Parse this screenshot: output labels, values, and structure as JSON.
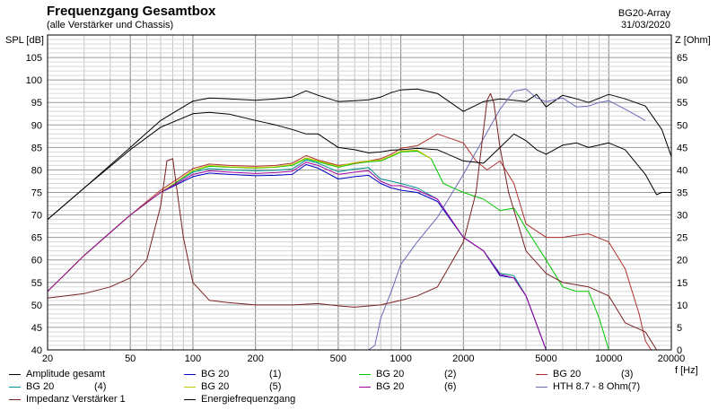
{
  "header": {
    "title": "Frequenzgang Gesamtbox",
    "subtitle": "(alle Verstärker und Chassis)",
    "project": "BG20-Array",
    "date": "31/03/2020"
  },
  "chart_data": {
    "type": "line",
    "x_scale": "log",
    "xlim": [
      20,
      20000
    ],
    "x_ticks": [
      "20",
      "50",
      "100",
      "200",
      "500",
      "1000",
      "2000",
      "5000",
      "10000",
      "20000"
    ],
    "xlabel": "f [Hz]",
    "y_left": {
      "label": "SPL [dB]",
      "lim": [
        40,
        110
      ],
      "ticks": [
        "105",
        "100",
        "95",
        "90",
        "85",
        "80",
        "75",
        "70",
        "65",
        "60",
        "55",
        "50",
        "45",
        "40"
      ]
    },
    "y_right": {
      "label": "Z [Ohm]",
      "lim": [
        0,
        70
      ],
      "ticks": [
        "65",
        "60",
        "55",
        "50",
        "45",
        "40",
        "35",
        "30",
        "25",
        "20",
        "15",
        "10",
        "5",
        "0"
      ]
    },
    "grid": true,
    "series": [
      {
        "name": "Amplitude gesamt",
        "suffix": "",
        "color": "#000000",
        "axis": "left",
        "x": [
          20,
          30,
          50,
          70,
          100,
          120,
          150,
          200,
          250,
          300,
          350,
          400,
          500,
          600,
          700,
          800,
          900,
          1000,
          1200,
          1500,
          2000,
          2500,
          3000,
          3500,
          4000,
          4500,
          5000,
          6000,
          7000,
          8000,
          10000,
          12000,
          15000,
          18000,
          20000
        ],
        "y": [
          69,
          76,
          85,
          91,
          95.3,
          96,
          95.8,
          95.5,
          95.8,
          96.2,
          97.6,
          96.6,
          95.2,
          95.4,
          95.6,
          96.2,
          97.2,
          97.8,
          98,
          97,
          93,
          95.2,
          95.8,
          95.5,
          95.2,
          96.8,
          94,
          96.6,
          95.8,
          95,
          96.8,
          95.8,
          94.2,
          89,
          83
        ]
      },
      {
        "name": "BG 20",
        "suffix": "(1)",
        "color": "#0000c8",
        "axis": "left",
        "x": [
          20,
          30,
          50,
          70,
          100,
          120,
          150,
          200,
          250,
          300,
          350,
          400,
          500,
          600,
          700,
          800,
          900,
          1000,
          1200,
          1500,
          2000,
          2500,
          3000,
          3500,
          4000,
          5000,
          6000
        ],
        "y": [
          53,
          61,
          70,
          75,
          78.5,
          79.3,
          79,
          78.7,
          78.8,
          79,
          81.2,
          80.4,
          78,
          78.5,
          78.8,
          77,
          76,
          75.5,
          75,
          73,
          65,
          62,
          56.5,
          56,
          52,
          40,
          40
        ]
      },
      {
        "name": "BG 20",
        "suffix": "(2)",
        "color": "#00c800",
        "axis": "left",
        "x": [
          20,
          30,
          50,
          70,
          100,
          120,
          150,
          200,
          250,
          300,
          350,
          400,
          500,
          600,
          700,
          800,
          900,
          1000,
          1200,
          1400,
          1600,
          2000,
          2500,
          3000,
          3500,
          4000,
          5000,
          6000,
          7000,
          8000,
          9000,
          10000
        ],
        "y": [
          53,
          61,
          70,
          75,
          79.8,
          80.8,
          80.6,
          80.4,
          80.6,
          81,
          82.5,
          81.8,
          80.6,
          81.4,
          81.8,
          82,
          83,
          84,
          84.2,
          82.5,
          77,
          75,
          73.5,
          71,
          71.5,
          67,
          60,
          54,
          53,
          53,
          47,
          40
        ]
      },
      {
        "name": "BG 20",
        "suffix": "(3)",
        "color": "#b03030",
        "axis": "left",
        "x": [
          20,
          30,
          50,
          70,
          100,
          120,
          150,
          200,
          250,
          300,
          350,
          400,
          500,
          600,
          700,
          800,
          900,
          1000,
          1200,
          1500,
          2000,
          2300,
          2600,
          3000,
          3500,
          4000,
          5000,
          6000,
          7000,
          8000,
          10000,
          12000,
          14000,
          15000,
          16000
        ],
        "y": [
          53,
          61,
          70,
          75.5,
          80.3,
          81.3,
          81,
          80.8,
          81,
          81.5,
          83.2,
          82.2,
          81,
          81.5,
          82,
          82.5,
          83.5,
          84.8,
          85.4,
          88,
          86,
          82,
          80,
          82,
          77,
          68,
          65,
          65,
          65.5,
          65.8,
          64,
          58,
          48,
          42,
          40
        ]
      },
      {
        "name": "BG 20",
        "suffix": "(4)",
        "color": "#009090",
        "axis": "left",
        "x": [
          20,
          30,
          50,
          70,
          100,
          120,
          150,
          200,
          250,
          300,
          350,
          400,
          500,
          600,
          700,
          800,
          900,
          1000,
          1200,
          1500,
          2000,
          2500,
          3000,
          3500,
          4000,
          5000,
          6000
        ],
        "y": [
          53,
          61,
          70,
          75,
          79.5,
          80.3,
          80,
          79.8,
          79.9,
          80.2,
          82.2,
          81.5,
          79.6,
          80.2,
          80.5,
          78,
          77.5,
          77,
          76,
          73.5,
          65,
          62,
          57,
          56.5,
          52,
          40,
          40
        ]
      },
      {
        "name": "BG 20",
        "suffix": "(5)",
        "color": "#c8c800",
        "axis": "left",
        "x": [
          20,
          30,
          50,
          70,
          100,
          120,
          150,
          200,
          250,
          300,
          350,
          400,
          500,
          600,
          700,
          800,
          900,
          1000,
          1200,
          1400
        ],
        "y": [
          53,
          61,
          70,
          75,
          79.9,
          81,
          80.7,
          80.5,
          80.7,
          81.2,
          82.7,
          82,
          80.8,
          81.6,
          82,
          82.2,
          83.2,
          84.2,
          84.4,
          82.5
        ]
      },
      {
        "name": "BG 20",
        "suffix": "(6)",
        "color": "#a000a0",
        "axis": "left",
        "x": [
          20,
          30,
          50,
          70,
          100,
          120,
          150,
          200,
          250,
          300,
          350,
          400,
          500,
          600,
          700,
          800,
          900,
          1000,
          1200,
          1500,
          2000,
          2500,
          3000,
          3500,
          4000,
          5000,
          6000
        ],
        "y": [
          53,
          61,
          70,
          75,
          79,
          79.8,
          79.5,
          79.2,
          79.4,
          79.7,
          81.7,
          81,
          79,
          79.5,
          79.8,
          77.5,
          76.5,
          76.5,
          75.5,
          73.5,
          65,
          62,
          56.8,
          56,
          52,
          40,
          40
        ]
      },
      {
        "name": "HTH 8.7 - 8 Ohm",
        "suffix": "(7)",
        "color": "#6a6ab8",
        "axis": "right",
        "x": [
          700,
          750,
          800,
          900,
          1000,
          1200,
          1500,
          2000,
          2500,
          3000,
          3500,
          4000,
          4500,
          5000,
          6000,
          7000,
          8000,
          9000,
          10000,
          12000,
          15000
        ],
        "y": [
          0,
          1,
          7,
          13,
          19,
          24,
          29.5,
          39,
          47,
          53.5,
          57.5,
          58,
          56,
          55.2,
          56,
          54,
          54.2,
          55,
          55.4,
          53.5,
          51
        ]
      },
      {
        "name": "Impedanz Verstärker 1",
        "suffix": "",
        "color": "#7a2020",
        "axis": "right",
        "x": [
          20,
          30,
          40,
          50,
          60,
          70,
          75,
          80,
          90,
          100,
          120,
          150,
          200,
          300,
          400,
          500,
          600,
          800,
          1000,
          1200,
          1500,
          2000,
          2300,
          2600,
          2700,
          2800,
          3000,
          3300,
          4000,
          5000,
          6000,
          8000,
          10000,
          12000,
          15000,
          17000,
          18000,
          20000
        ],
        "y": [
          11.5,
          12.5,
          14,
          16,
          20,
          32,
          42,
          42.5,
          25,
          15,
          11,
          10.5,
          10,
          10,
          10.3,
          9.8,
          9.5,
          10,
          11,
          12,
          14,
          24,
          35,
          55.5,
          57,
          55,
          45,
          35,
          22,
          17,
          15,
          14,
          12,
          6,
          4,
          0,
          0,
          0
        ]
      },
      {
        "name": "Energiefrequenzgang",
        "suffix": "",
        "color": "#000000",
        "axis": "left",
        "x": [
          20,
          30,
          50,
          70,
          100,
          120,
          150,
          200,
          250,
          300,
          350,
          400,
          500,
          600,
          700,
          800,
          900,
          1000,
          1200,
          1500,
          2000,
          2500,
          3000,
          3500,
          4000,
          4500,
          5000,
          6000,
          7000,
          8000,
          10000,
          12000,
          15000,
          17000,
          18000,
          20000
        ],
        "y": [
          69,
          76,
          84.5,
          89.5,
          92.5,
          92.8,
          92.4,
          91,
          90,
          89,
          88,
          88,
          85,
          84.5,
          83.8,
          84,
          84.4,
          84.5,
          84.8,
          84.5,
          82,
          81.5,
          85,
          88,
          86.5,
          84.5,
          83.5,
          85.5,
          86,
          85,
          86,
          84.5,
          79,
          74.5,
          75,
          75
        ]
      }
    ]
  }
}
